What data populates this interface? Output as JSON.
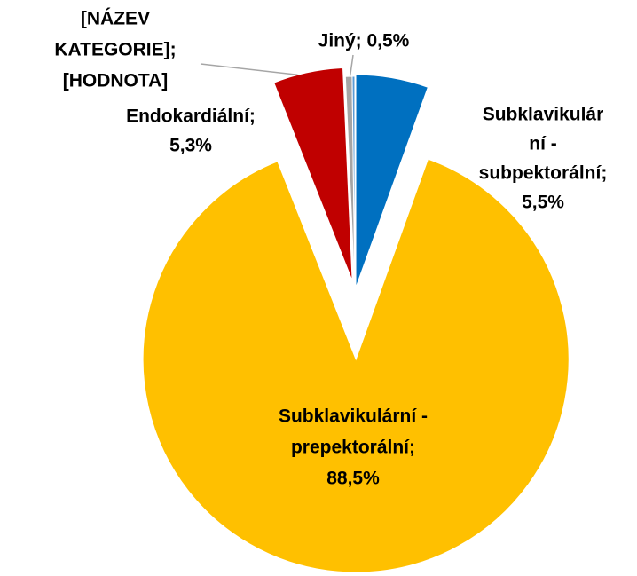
{
  "chart_data": {
    "type": "pie",
    "labels": [
      [
        "Subklavikulár",
        "ní -",
        "subpektorální;",
        "5,5%"
      ],
      [
        "Subklavikulární -",
        "prepektorální;",
        "88,5%"
      ],
      [
        "Endokardiální;",
        "5,3%"
      ],
      [
        "Jiný; 0,5%"
      ],
      [
        "[NÁZEV",
        "KATEGORIE];",
        "[HODNOTA]"
      ]
    ],
    "values": [
      5.5,
      88.5,
      5.3,
      0.5,
      0.2
    ],
    "colors": [
      "#0070c0",
      "#ffc000",
      "#c00000",
      "#a5a5a5",
      "#5b9bd5"
    ]
  }
}
